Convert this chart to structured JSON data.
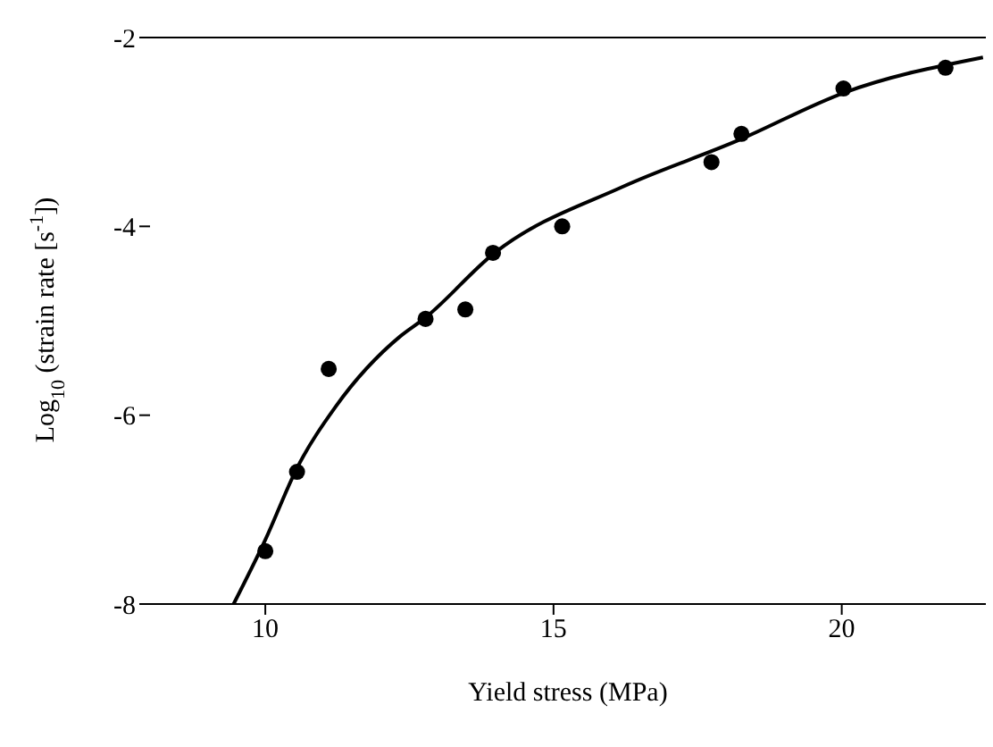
{
  "chart_data": {
    "type": "scatter",
    "xlabel": "Yield stress (MPa)",
    "ylabel": "Log$_{10}$ (strain rate [s$^{-1}$])",
    "xlim": [
      8,
      22.5
    ],
    "ylim": [
      -8,
      -2
    ],
    "xticks": [
      10,
      15,
      20
    ],
    "yticks": [
      -2,
      -4,
      -6,
      -8
    ],
    "grid": false,
    "marker": "circle",
    "series": [
      {
        "color": "#000000",
        "x": [
          10.0,
          10.55,
          11.1,
          12.78,
          13.47,
          13.95,
          15.15,
          17.74,
          18.26,
          20.03,
          21.8
        ],
        "values": [
          -7.44,
          -6.6,
          -5.51,
          -4.98,
          -4.88,
          -4.28,
          -4.0,
          -3.32,
          -3.02,
          -2.54,
          -2.32
        ]
      },
      {
        "type": "line",
        "color": "#000000",
        "line_style": "solid",
        "marker": "none",
        "x": [
          9.45,
          10.0,
          10.55,
          11.22,
          12.35,
          12.75,
          13.98,
          16.2,
          18.2,
          20.06,
          22.45
        ],
        "values": [
          -8,
          -7.32,
          -6.56,
          -5.91,
          -5.16,
          -4.98,
          -4.28,
          -3.58,
          -3.09,
          -2.58,
          -2.21
        ]
      }
    ]
  }
}
